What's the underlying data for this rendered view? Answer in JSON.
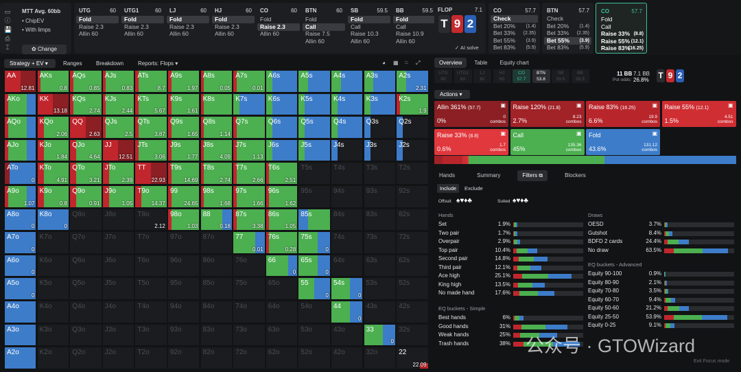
{
  "sidebar": {
    "title": "MTT  Avg. 60bb",
    "opt1": "• ChipEV",
    "opt2": "• With limps",
    "change": "✿ Change",
    "icons": [
      "collapse-icon",
      "info-icon",
      "save-icon",
      "print-icon",
      "tools-icon"
    ]
  },
  "positions": [
    {
      "name": "UTG",
      "bb": "60",
      "actions": [
        "Fold",
        "Raise 2.3",
        "Allin 60"
      ],
      "sel": 0
    },
    {
      "name": "UTG1",
      "bb": "60",
      "actions": [
        "Fold",
        "Raise 2.3",
        "Allin 60"
      ],
      "sel": 0
    },
    {
      "name": "LJ",
      "bb": "60",
      "actions": [
        "Fold",
        "Raise 2.3",
        "Allin 60"
      ],
      "sel": 0
    },
    {
      "name": "HJ",
      "bb": "60",
      "actions": [
        "Fold",
        "Raise 2.3",
        "Allin 60"
      ],
      "sel": 0
    },
    {
      "name": "CO",
      "bb": "60",
      "actions": [
        "Fold",
        "Raise 2.3",
        "Allin 60"
      ],
      "sel": 1
    },
    {
      "name": "BTN",
      "bb": "60",
      "actions": [
        "Fold",
        "Call",
        "Raise 7.5",
        "Allin 60"
      ],
      "sel": 1
    },
    {
      "name": "SB",
      "bb": "59.5",
      "actions": [
        "Fold",
        "Call",
        "Raise 10.3",
        "Allin 60"
      ],
      "sel": 0
    },
    {
      "name": "BB",
      "bb": "59.5",
      "actions": [
        "Fold",
        "Call",
        "Raise 10.9",
        "Allin 60"
      ],
      "sel": 0
    }
  ],
  "flop": {
    "label": "FLOP",
    "pot": "7.1",
    "cards": [
      "T",
      "9",
      "2"
    ],
    "ai": "✓ AI solve"
  },
  "street_boxes": [
    {
      "name": "CO",
      "bb": "57.7",
      "rows": [
        [
          "Check",
          ""
        ],
        [
          "Bet 20%",
          "(1.4)"
        ],
        [
          "Bet 33%",
          "(2.35)"
        ],
        [
          "Bet 55%",
          "(3.9)"
        ],
        [
          "Bet 83%",
          "(5.9)"
        ]
      ],
      "sel": 0
    },
    {
      "name": "BTN",
      "bb": "57.7",
      "rows": [
        [
          "Check",
          ""
        ],
        [
          "Bet 20%",
          "(1.4)"
        ],
        [
          "Bet 33%",
          "(2.35)"
        ],
        [
          "Bet 55%",
          "(3.9)"
        ],
        [
          "Bet 83%",
          "(5.9)"
        ]
      ],
      "sel": 3
    },
    {
      "name": "CO",
      "bb": "57.7",
      "rows": [
        [
          "Fold",
          ""
        ],
        [
          "Call",
          ""
        ],
        [
          "Raise 33%",
          "(8.8)"
        ],
        [
          "Raise 55%",
          "(12.1)"
        ],
        [
          "Raise 83%",
          "(16.25)"
        ]
      ],
      "sel": -1
    }
  ],
  "toolbar": {
    "strategy": "Strategy + EV ▾",
    "ranges": "Ranges",
    "breakdown": "Breakdown",
    "reports": "Reports: Flops ▾"
  },
  "grid": {
    "ranks": [
      "A",
      "K",
      "Q",
      "J",
      "T",
      "9",
      "8",
      "7",
      "6",
      "5",
      "4",
      "3",
      "2"
    ],
    "ev": {
      "0,0": "12.81",
      "0,1": "0.8",
      "0,2": "0.85",
      "0,3": "0.83",
      "0,4": "8.7",
      "0,5": "1.97",
      "0,6": "0.05",
      "0,7": "0.01",
      "0,12": "2.31",
      "1,1": "13.18",
      "1,2": "2.74",
      "1,3": "2.44",
      "1,4": "5.67",
      "1,5": "1.61",
      "1,12": "1.9",
      "2,1": "2.06",
      "2,2": "2.63",
      "2,3": "2.5",
      "2,4": "3.87",
      "2,5": "1.65",
      "2,6": "1.14",
      "3,1": "1.84",
      "3,2": "4.64",
      "3,3": "12.51",
      "3,4": "3.06",
      "3,5": "1.77",
      "3,6": "4.09",
      "3,7": "1.13",
      "4,0": "0",
      "4,1": "4.91",
      "4,2": "3.21",
      "4,3": "2.39",
      "4,4": "22.93",
      "4,5": "14.69",
      "4,6": "2.74",
      "4,7": "2.66",
      "4,8": "2.51",
      "5,0": "1.07",
      "5,1": "0.8",
      "5,2": "0.91",
      "5,3": "1.05",
      "5,4": "14.37",
      "5,5": "24.65",
      "5,6": "1.68",
      "5,7": "1.66",
      "5,8": "1.62",
      "6,0": "0",
      "6,1": "0",
      "6,4": "2.12",
      "6,5": "1.03",
      "6,6": "0.18",
      "6,7": "3.38",
      "6,8": "1.05",
      "7,0": "0",
      "7,7": "0.01",
      "7,8": "0.28",
      "7,9": "0",
      "8,0": "0",
      "8,8": "0",
      "8,9": "0",
      "9,0": "0",
      "9,9": "0",
      "9,10": "0",
      "10,10": "0",
      "11,11": "0",
      "12,12": "22.09"
    }
  },
  "panel": {
    "tabs": [
      "Overview",
      "Table",
      "Equity chart"
    ],
    "seats": [
      [
        "UTG",
        "60"
      ],
      [
        "UTG1",
        "60"
      ],
      [
        "LJ",
        "60"
      ],
      [
        "HJ",
        "60"
      ],
      [
        "CO",
        "57.7"
      ],
      [
        "BTN",
        "53.8"
      ],
      [
        "SB",
        "59.5"
      ],
      [
        "BB",
        "59.5"
      ]
    ],
    "pot": "11 BB",
    "pot2": "7.1 BB",
    "potodds_label": "Pot odds:",
    "potodds": "26.8%",
    "actions_label": "Actions ▾",
    "actions": [
      {
        "t": "Allin 361%",
        "s": "(57.7)",
        "p": "0%",
        "c": "0",
        "color": "#8b1f23"
      },
      {
        "t": "Raise 120%",
        "s": "(21.8)",
        "p": "2.7%",
        "c": "8.23",
        "color": "#a12227"
      },
      {
        "t": "Raise 83%",
        "s": "(16.25)",
        "p": "6.6%",
        "c": "19.9",
        "color": "#b8262c"
      },
      {
        "t": "Raise 55%",
        "s": "(12.1)",
        "p": "1.5%",
        "c": "4.51",
        "color": "#cf2e33"
      },
      {
        "t": "Raise 33%",
        "s": "(8.8)",
        "p": "0.6%",
        "c": "1.7",
        "color": "#e0383d"
      },
      {
        "t": "Call",
        "s": "",
        "p": "45%",
        "c": "135.36",
        "color": "#4caf50"
      },
      {
        "t": "Fold",
        "s": "",
        "p": "43.6%",
        "c": "131.12",
        "color": "#3d7cc9"
      }
    ],
    "combos": "combos",
    "subtabs": [
      "Hands",
      "Summary",
      "Filters ⧉",
      "Blockers"
    ],
    "include": "Include",
    "exclude": "Exclude",
    "offsuit": "Offsuit",
    "suited": "Suited",
    "hands_h": "Hands",
    "hands": [
      [
        "Set",
        "1.9%"
      ],
      [
        "Two pair",
        "1.7%"
      ],
      [
        "Overpair",
        "2.9%"
      ],
      [
        "Top pair",
        "10.4%"
      ],
      [
        "Second pair",
        "14.8%"
      ],
      [
        "Third pair",
        "12.1%"
      ],
      [
        "Ace high",
        "25.1%"
      ],
      [
        "King high",
        "13.5%"
      ],
      [
        "No made hand",
        "17.6%"
      ]
    ],
    "eqs_h": "EQ buckets - Simple",
    "eqs": [
      [
        "Best hands",
        "6%"
      ],
      [
        "Good hands",
        "31%"
      ],
      [
        "Weak hands",
        "25%"
      ],
      [
        "Trash hands",
        "38%"
      ]
    ],
    "draws_h": "Draws",
    "draws": [
      [
        "OESD",
        "3.7%"
      ],
      [
        "Gutshot",
        "8.4%"
      ],
      [
        "BDFD 2 cards",
        "24.4%"
      ],
      [
        "No draw",
        "63.5%"
      ]
    ],
    "eqa_h": "EQ buckets - Advanced",
    "eqa": [
      [
        "Equity 90-100",
        "0.9%"
      ],
      [
        "Equity 80-90",
        "2.1%"
      ],
      [
        "Equity 70-80",
        "3.5%"
      ],
      [
        "Equity 60-70",
        "9.4%"
      ],
      [
        "Equity 50-60",
        "21.2%"
      ],
      [
        "Equity 25-50",
        "53.9%"
      ],
      [
        "Equity 0-25",
        "9.1%"
      ]
    ],
    "watermark": "公众号 · GTOWizard",
    "exit": "Exit Focus mode"
  },
  "colors": {
    "fold": "#3d7cc9",
    "call": "#4caf50",
    "raise": "#c0262c",
    "allin": "#7a1a1e"
  }
}
